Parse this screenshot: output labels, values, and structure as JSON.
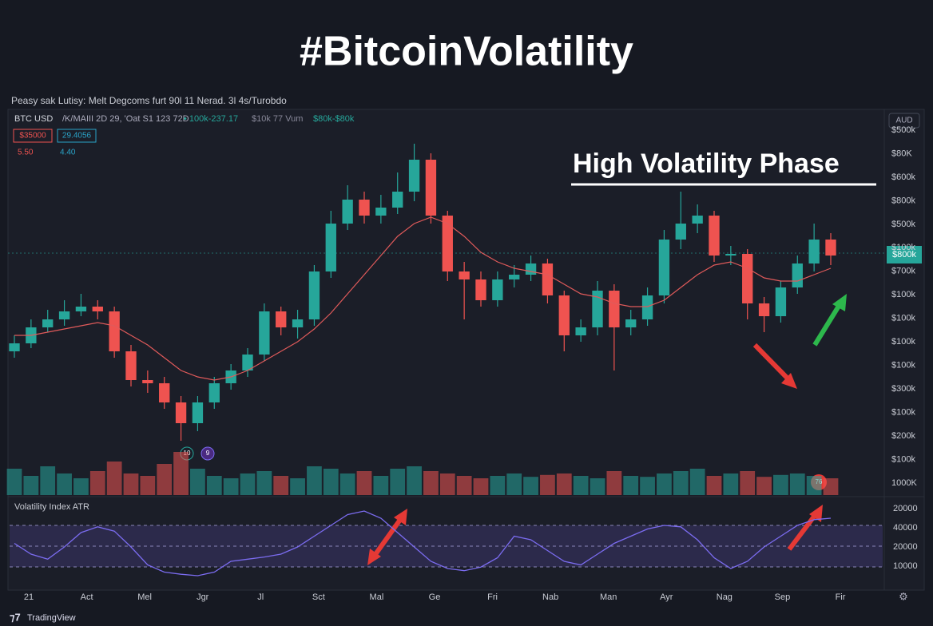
{
  "title": "#BitcoinVolatility",
  "header": {
    "caption": "Peasy sak Lutisy: Melt Degcoms furt 90l 11 Nerad. 3l 4s/Turobdo",
    "symbol": "BTC USD",
    "info": "/K/MAIII 2D 29, 'Oat S1 123 72D",
    "change": "• 100k-237.17",
    "volume": "$10k 77 Vum",
    "range": "$80k-$80k",
    "box1": "$35000",
    "box2": "29.4056",
    "val1": "5.50",
    "val2": "4.40",
    "currency": "AUD"
  },
  "annotation": "High Volatility Phase",
  "price_badge": "$800k",
  "markers": [
    "10",
    "9",
    "76"
  ],
  "y_labels": [
    "$500k",
    "$80K",
    "$600k",
    "$800k",
    "$500k",
    "$100k",
    "$700k",
    "$100k",
    "$100k",
    "$100k",
    "$100k",
    "$300k",
    "$100k",
    "$200k",
    "$100k",
    "1000K"
  ],
  "atr_title": "Volatility Index ATR",
  "atr_labels": [
    "20000",
    "40000",
    "20000",
    "10000"
  ],
  "x_labels": [
    "21",
    "Act",
    "Mel",
    "Jgr",
    "Jl",
    "Sct",
    "Mal",
    "Ge",
    "Fri",
    "Nab",
    "Man",
    "Ayr",
    "Nag",
    "Sep",
    "Fir"
  ],
  "footer": "TradingView",
  "chart": {
    "type": "candlestick",
    "ylim": [
      0,
      100
    ],
    "up_color": "#26a69a",
    "down_color": "#ef5350",
    "ma_color": "#e05a5a",
    "atr_color": "#7b6cf0",
    "ohlc": [
      [
        30,
        35,
        28,
        32.5
      ],
      [
        32.5,
        40,
        31,
        37.5
      ],
      [
        37.5,
        43,
        36,
        40
      ],
      [
        40,
        46,
        38,
        42.5
      ],
      [
        42.5,
        48,
        41,
        44
      ],
      [
        44,
        46,
        40,
        42.5
      ],
      [
        42.5,
        44,
        28,
        30
      ],
      [
        30,
        32,
        19,
        21
      ],
      [
        21,
        24,
        17,
        20
      ],
      [
        20,
        22,
        12,
        14
      ],
      [
        14,
        16,
        2,
        7.5
      ],
      [
        7.5,
        16,
        5,
        14
      ],
      [
        14,
        22,
        12,
        20
      ],
      [
        20,
        26,
        18,
        24
      ],
      [
        24,
        31,
        22,
        29
      ],
      [
        29,
        45,
        27,
        42.5
      ],
      [
        42.5,
        44,
        35,
        37.5
      ],
      [
        37.5,
        43,
        34,
        40
      ],
      [
        40,
        57,
        38,
        55
      ],
      [
        55,
        74,
        53,
        70
      ],
      [
        70,
        82,
        68,
        77.5
      ],
      [
        77.5,
        80,
        70,
        72.5
      ],
      [
        72.5,
        79,
        70,
        75
      ],
      [
        75,
        86,
        73,
        80
      ],
      [
        80,
        95,
        77,
        90
      ],
      [
        90,
        92,
        70,
        72.5
      ],
      [
        72.5,
        74,
        52,
        55
      ],
      [
        55,
        58,
        40,
        52.5
      ],
      [
        52.5,
        55,
        44,
        46
      ],
      [
        46,
        55,
        44,
        52.5
      ],
      [
        52.5,
        57,
        50,
        54
      ],
      [
        54,
        60,
        52,
        57.5
      ],
      [
        57.5,
        59,
        45,
        47.5
      ],
      [
        47.5,
        49,
        30,
        35
      ],
      [
        35,
        40,
        33,
        37.5
      ],
      [
        37.5,
        52,
        35,
        49
      ],
      [
        49,
        51,
        24,
        37.5
      ],
      [
        37.5,
        43,
        35,
        40
      ],
      [
        40,
        50,
        38,
        47.5
      ],
      [
        47.5,
        68,
        45,
        65
      ],
      [
        65,
        80,
        62,
        70
      ],
      [
        70,
        76,
        67,
        72.5
      ],
      [
        72.5,
        74,
        58,
        60
      ],
      [
        60,
        63,
        57,
        60.5
      ],
      [
        60.5,
        62,
        40,
        45
      ],
      [
        45,
        47,
        36,
        41
      ],
      [
        41,
        52,
        39,
        50
      ],
      [
        50,
        60,
        48,
        57.5
      ],
      [
        57.5,
        70,
        55,
        65
      ],
      [
        65,
        67,
        57,
        60
      ]
    ],
    "ma": [
      35,
      35,
      36,
      37,
      38,
      39,
      38,
      35,
      32,
      28,
      24,
      22,
      21,
      22,
      24,
      27,
      30,
      33,
      37,
      42,
      48,
      54,
      60,
      66,
      70,
      72,
      70,
      66,
      61,
      58,
      56,
      55,
      54,
      51,
      48,
      47,
      45,
      44,
      44,
      46,
      50,
      54,
      57,
      58,
      56,
      53,
      52,
      52,
      54,
      56
    ],
    "volume": [
      55,
      40,
      60,
      45,
      35,
      50,
      70,
      45,
      40,
      65,
      90,
      55,
      40,
      35,
      45,
      50,
      40,
      35,
      60,
      55,
      45,
      50,
      40,
      55,
      60,
      50,
      45,
      40,
      35,
      40,
      45,
      38,
      42,
      45,
      40,
      35,
      50,
      40,
      38,
      45,
      50,
      55,
      40,
      45,
      50,
      38,
      42,
      45,
      40,
      35
    ],
    "atr": [
      55,
      40,
      33,
      50,
      70,
      78,
      72,
      50,
      25,
      15,
      12,
      10,
      15,
      30,
      33,
      36,
      40,
      50,
      65,
      80,
      95,
      100,
      90,
      70,
      50,
      30,
      20,
      17,
      22,
      35,
      65,
      60,
      45,
      30,
      25,
      40,
      55,
      65,
      75,
      80,
      78,
      60,
      35,
      20,
      30,
      50,
      65,
      80,
      88,
      90
    ]
  }
}
